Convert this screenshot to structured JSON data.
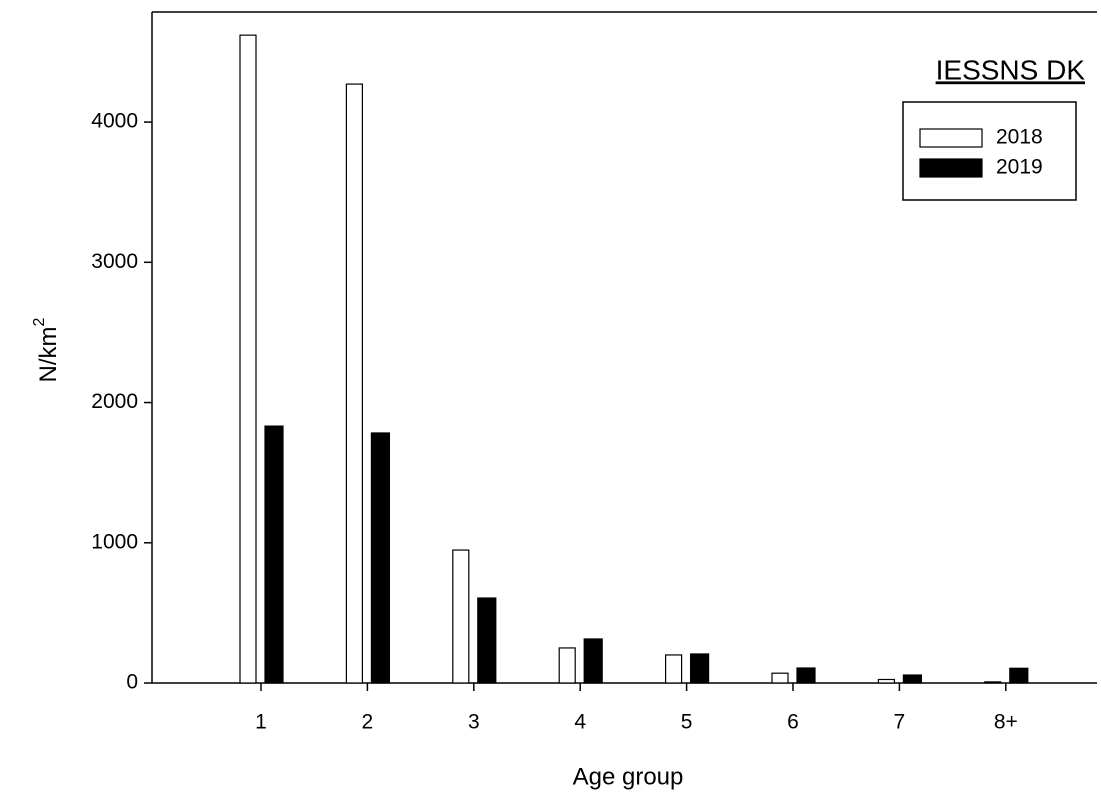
{
  "chart_data": {
    "type": "bar",
    "title": "IESSNS DK",
    "x_label": "Age group",
    "y_label": "N/km",
    "y_label_superscript": "2",
    "categories": [
      "1",
      "2",
      "3",
      "4",
      "5",
      "6",
      "7",
      "8+"
    ],
    "series": [
      {
        "name": "2018",
        "color": "#ffffff",
        "values": [
          4620,
          4271,
          948,
          250,
          200,
          70,
          25,
          8
        ]
      },
      {
        "name": "2019",
        "color": "#000000",
        "values": [
          1832,
          1783,
          606,
          314,
          207,
          107,
          57,
          105
        ]
      }
    ],
    "ylim": [
      0,
      4785
    ],
    "yticks": [
      0,
      1000,
      2000,
      3000,
      4000
    ],
    "grid": false,
    "legend": "upper right"
  }
}
